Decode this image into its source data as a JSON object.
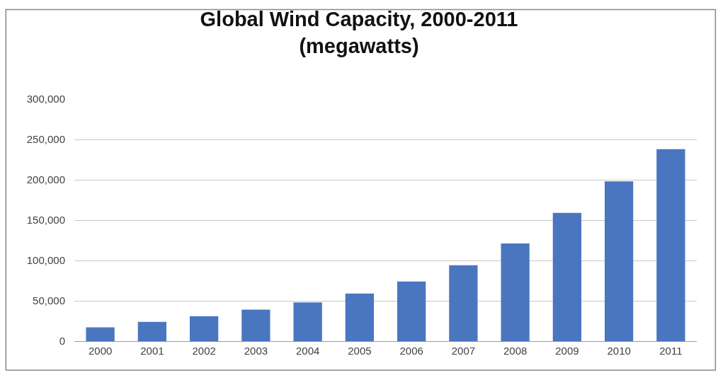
{
  "chart_data": {
    "type": "bar",
    "title": "Global Wind Capacity, 2000-2011",
    "subtitle": "(megawatts)",
    "categories": [
      "2000",
      "2001",
      "2002",
      "2003",
      "2004",
      "2005",
      "2006",
      "2007",
      "2008",
      "2009",
      "2010",
      "2011"
    ],
    "values": [
      17000,
      24000,
      31000,
      39000,
      48000,
      59000,
      74000,
      94000,
      121000,
      159000,
      198000,
      238000
    ],
    "color": "#4a76c0",
    "ylim": [
      0,
      300000
    ],
    "yticks": [
      {
        "value": 0,
        "label": "0"
      },
      {
        "value": 50000,
        "label": "50,000"
      },
      {
        "value": 100000,
        "label": "100,000"
      },
      {
        "value": 150000,
        "label": "150,000"
      },
      {
        "value": 200000,
        "label": "200,000"
      },
      {
        "value": 250000,
        "label": "250,000"
      },
      {
        "value": 300000,
        "label": "300,000"
      }
    ],
    "grid": "y"
  }
}
